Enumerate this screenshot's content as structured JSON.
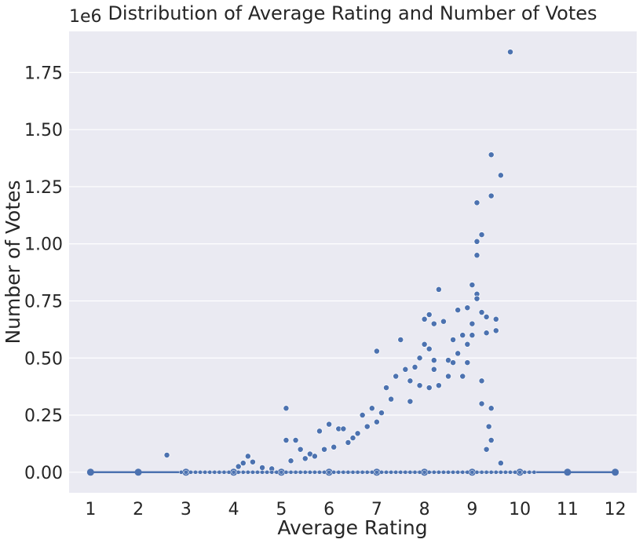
{
  "chart_data": {
    "type": "scatter",
    "title": "Distribution of Average Rating and Number of Votes",
    "xlabel": "Average Rating",
    "ylabel": "Number of Votes",
    "y_offset_label": "1e6",
    "xlim": [
      0.55,
      12.45
    ],
    "ylim": [
      -90000,
      1930000
    ],
    "x_ticks": [
      1,
      2,
      3,
      4,
      5,
      6,
      7,
      8,
      9,
      10,
      11,
      12
    ],
    "x_tick_labels": [
      "1",
      "2",
      "3",
      "4",
      "5",
      "6",
      "7",
      "8",
      "9",
      "10",
      "11",
      "12"
    ],
    "y_ticks": [
      0,
      250000,
      500000,
      750000,
      1000000,
      1250000,
      1500000,
      1750000
    ],
    "y_tick_labels": [
      "0.00",
      "0.25",
      "0.50",
      "0.75",
      "1.00",
      "1.25",
      "1.50",
      "1.75"
    ],
    "grid": true,
    "colors": {
      "background": "#eaeaf2",
      "grid": "#ffffff",
      "marker": "#4c72b0",
      "marker_edge": "#ffffff",
      "text": "#262626"
    },
    "series": [
      {
        "kind": "scatter",
        "points": [
          [
            2.6,
            75000
          ],
          [
            4.3,
            70000
          ],
          [
            4.2,
            40000
          ],
          [
            4.1,
            25000
          ],
          [
            4.4,
            45000
          ],
          [
            5.1,
            280000
          ],
          [
            5.1,
            140000
          ],
          [
            5.3,
            140000
          ],
          [
            5.4,
            100000
          ],
          [
            5.6,
            80000
          ],
          [
            5.8,
            180000
          ],
          [
            6.0,
            210000
          ],
          [
            6.2,
            190000
          ],
          [
            6.3,
            190000
          ],
          [
            6.5,
            150000
          ],
          [
            6.7,
            250000
          ],
          [
            6.9,
            280000
          ],
          [
            7.0,
            530000
          ],
          [
            7.1,
            260000
          ],
          [
            7.2,
            370000
          ],
          [
            7.4,
            420000
          ],
          [
            7.5,
            580000
          ],
          [
            7.6,
            450000
          ],
          [
            7.7,
            400000
          ],
          [
            7.8,
            460000
          ],
          [
            7.9,
            500000
          ],
          [
            8.0,
            670000
          ],
          [
            8.0,
            560000
          ],
          [
            8.1,
            690000
          ],
          [
            8.1,
            540000
          ],
          [
            8.2,
            650000
          ],
          [
            8.2,
            490000
          ],
          [
            8.2,
            450000
          ],
          [
            8.3,
            800000
          ],
          [
            8.4,
            660000
          ],
          [
            8.5,
            490000
          ],
          [
            8.6,
            580000
          ],
          [
            8.7,
            520000
          ],
          [
            8.7,
            710000
          ],
          [
            8.8,
            600000
          ],
          [
            8.9,
            720000
          ],
          [
            8.9,
            560000
          ],
          [
            9.0,
            820000
          ],
          [
            9.0,
            650000
          ],
          [
            9.0,
            600000
          ],
          [
            9.1,
            1180000
          ],
          [
            9.1,
            1010000
          ],
          [
            9.1,
            950000
          ],
          [
            9.1,
            780000
          ],
          [
            9.1,
            760000
          ],
          [
            9.2,
            1040000
          ],
          [
            9.2,
            700000
          ],
          [
            9.3,
            680000
          ],
          [
            9.4,
            1210000
          ],
          [
            9.4,
            1390000
          ],
          [
            9.5,
            670000
          ],
          [
            9.5,
            620000
          ],
          [
            9.6,
            1300000
          ],
          [
            9.8,
            1840000
          ],
          [
            9.3,
            610000
          ],
          [
            9.2,
            400000
          ],
          [
            9.4,
            280000
          ],
          [
            9.35,
            200000
          ],
          [
            9.4,
            140000
          ],
          [
            8.9,
            480000
          ],
          [
            8.8,
            420000
          ],
          [
            8.6,
            480000
          ],
          [
            8.5,
            420000
          ],
          [
            8.3,
            380000
          ],
          [
            8.1,
            370000
          ],
          [
            7.9,
            380000
          ],
          [
            7.7,
            310000
          ],
          [
            7.3,
            320000
          ],
          [
            7.0,
            220000
          ],
          [
            6.8,
            200000
          ],
          [
            6.6,
            170000
          ],
          [
            6.4,
            130000
          ],
          [
            6.1,
            110000
          ],
          [
            5.9,
            100000
          ],
          [
            5.7,
            70000
          ],
          [
            5.5,
            60000
          ],
          [
            5.2,
            50000
          ],
          [
            4.6,
            20000
          ],
          [
            4.8,
            15000
          ],
          [
            9.6,
            40000
          ],
          [
            9.3,
            100000
          ],
          [
            9.2,
            300000
          ]
        ]
      },
      {
        "kind": "line",
        "x": [
          1,
          2,
          3,
          4,
          5,
          6,
          7,
          8,
          9,
          10,
          11,
          12
        ],
        "y": [
          0,
          0,
          0,
          0,
          0,
          0,
          0,
          0,
          0,
          0,
          0,
          0
        ]
      }
    ]
  }
}
